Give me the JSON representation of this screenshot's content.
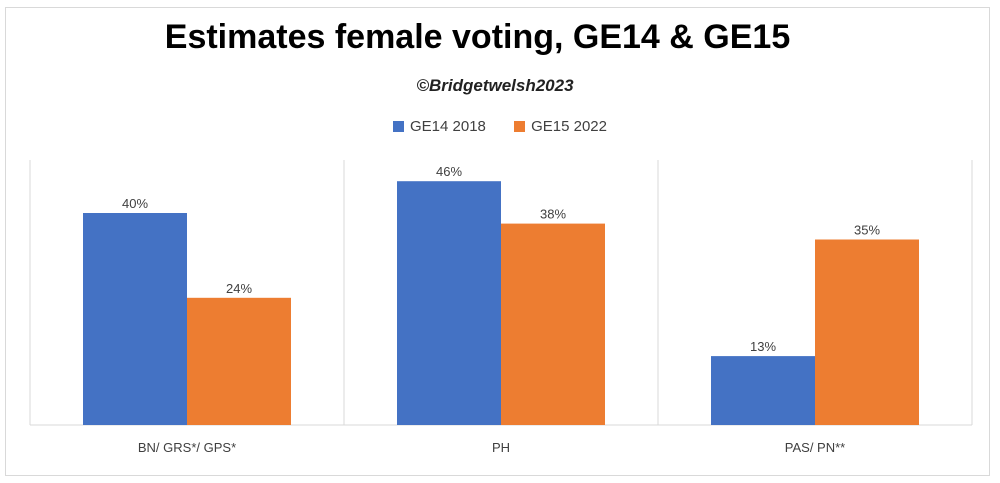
{
  "chart_data": {
    "type": "bar",
    "title": "Estimates female voting, GE14 & GE15",
    "subtitle": "©Bridgetwelsh2023",
    "categories": [
      "BN/ GRS*/ GPS*",
      "PH",
      "PAS/ PN**"
    ],
    "series": [
      {
        "name": "GE14 2018",
        "color": "#4472c4",
        "values": [
          40,
          46,
          13
        ],
        "labels": [
          "40%",
          "46%",
          "13%"
        ]
      },
      {
        "name": "GE15 2022",
        "color": "#ed7d31",
        "values": [
          24,
          38,
          35
        ],
        "labels": [
          "24%",
          "38%",
          "35%"
        ]
      }
    ],
    "ylim": [
      0,
      50
    ],
    "grid": false,
    "legend": "top"
  }
}
